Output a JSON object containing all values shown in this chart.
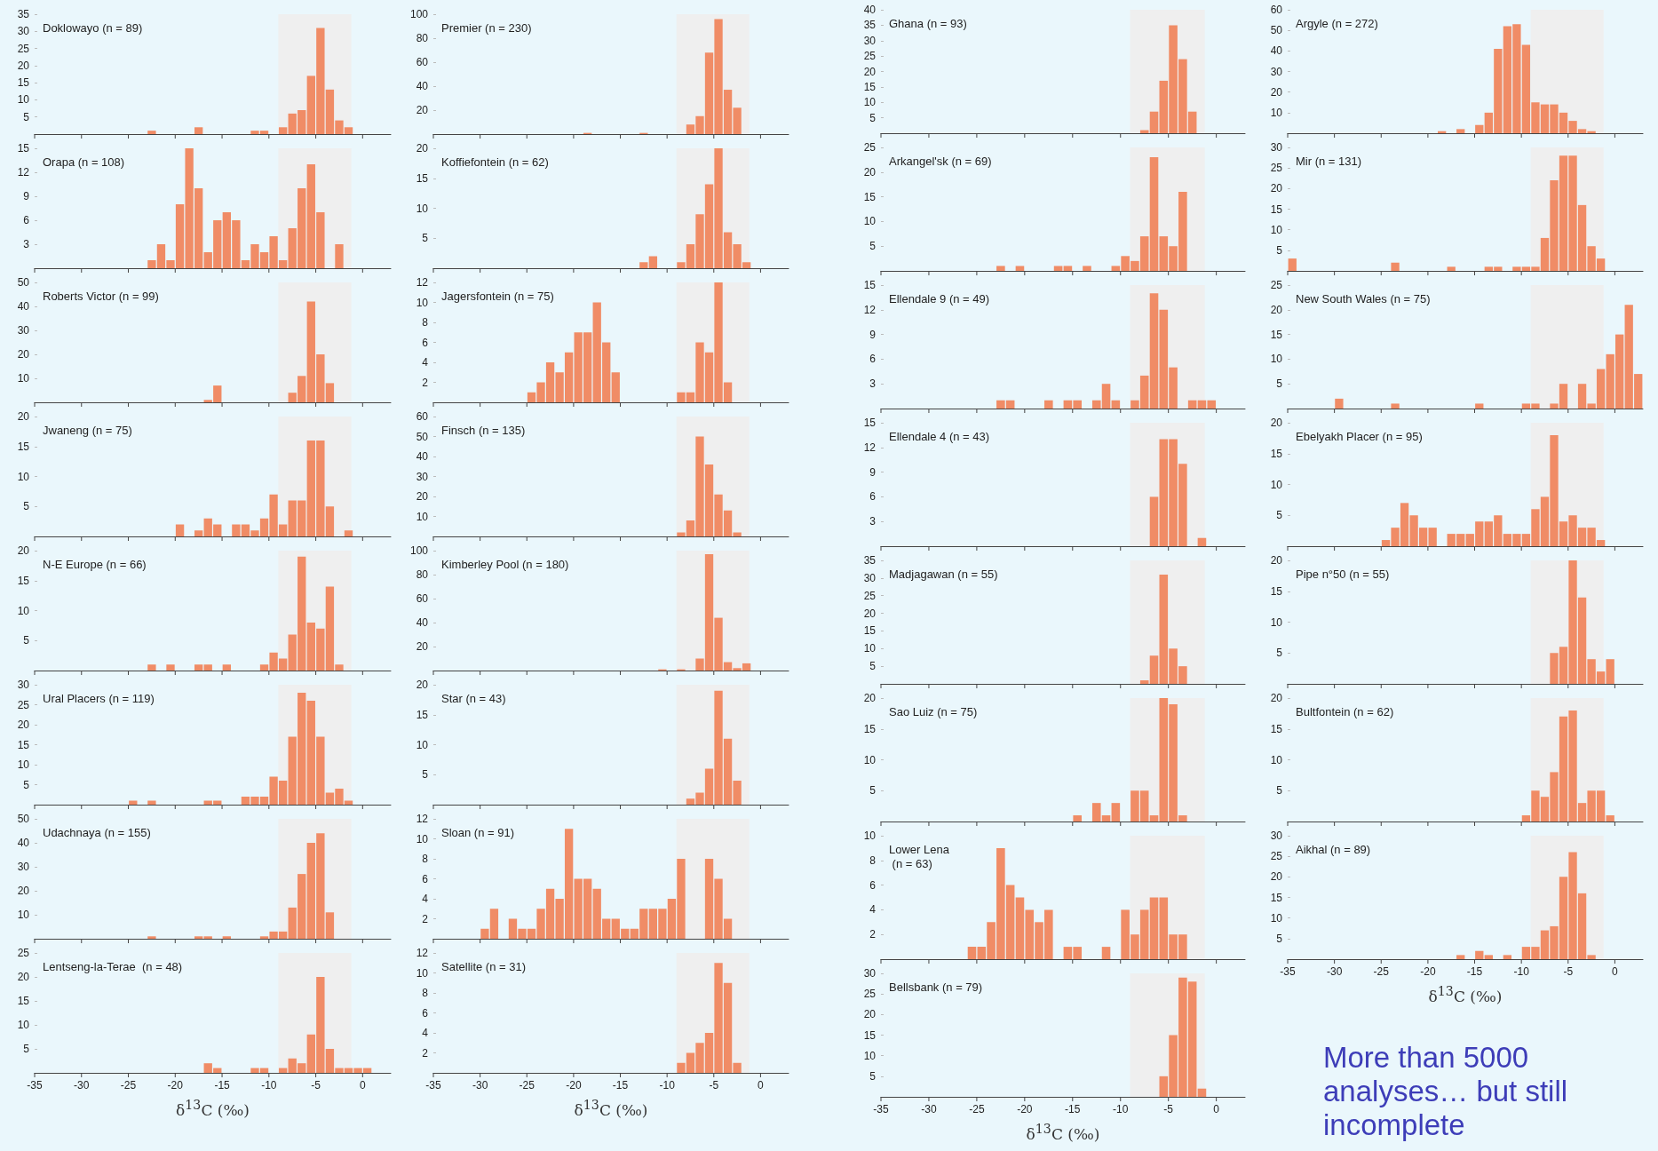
{
  "chart_data": [
    {
      "type": "histogram",
      "title": "Doklowayo (n = 89)",
      "bins": [
        -23,
        -22,
        -21,
        -20,
        -19,
        -18,
        -17,
        -16,
        -15,
        -14,
        -13,
        -12,
        -11,
        -10,
        -9,
        -8,
        -7,
        -6,
        -5,
        -4,
        -3,
        -2,
        -1
      ],
      "values": [
        1,
        0,
        0,
        0,
        0,
        2,
        0,
        0,
        0,
        0,
        0,
        1,
        1,
        0,
        2,
        6,
        7,
        17,
        31,
        13,
        4,
        2
      ],
      "color": "#f08c66",
      "xlim": [
        -35,
        3
      ],
      "xticks": [
        -35,
        -30,
        -25,
        -20,
        -15,
        -10,
        -5,
        0
      ],
      "ylim": [
        0,
        35
      ],
      "yticks": [
        5,
        10,
        15,
        20,
        25,
        30,
        35
      ],
      "bands": [
        {
          "axis": "x",
          "from": -9,
          "to": -1.2,
          "color": "#efefef"
        }
      ],
      "tick_labels": "y"
    },
    {
      "type": "histogram",
      "title": "Orapa (n = 108)",
      "bins": [
        -23,
        -22,
        -21,
        -20,
        -19,
        -18,
        -17,
        -16,
        -15,
        -14,
        -13,
        -12,
        -11,
        -10,
        -9,
        -8,
        -7,
        -6,
        -5,
        -4,
        -3,
        -2
      ],
      "values": [
        1,
        3,
        1,
        8,
        15,
        10,
        2,
        6,
        7,
        6,
        1,
        3,
        2,
        4,
        1,
        5,
        10,
        13,
        7,
        0,
        3
      ],
      "color": "#f08c66",
      "xlim": [
        -35,
        3
      ],
      "xticks": [
        -35,
        -30,
        -25,
        -20,
        -15,
        -10,
        -5,
        0
      ],
      "ylim": [
        0,
        15
      ],
      "yticks": [
        3,
        6,
        9,
        12,
        15
      ],
      "bands": [
        {
          "axis": "x",
          "from": -9,
          "to": -1.2,
          "color": "#efefef"
        }
      ],
      "tick_labels": "y"
    },
    {
      "type": "histogram",
      "title": "Roberts Victor (n = 99)",
      "bins": [
        -17,
        -16,
        -15,
        -14,
        -13,
        -12,
        -11,
        -10,
        -9,
        -8,
        -7,
        -6,
        -5,
        -4,
        -3
      ],
      "values": [
        1,
        7,
        0,
        0,
        0,
        0,
        0,
        0,
        0,
        4,
        11,
        42,
        20,
        8
      ],
      "color": "#f08c66",
      "xlim": [
        -35,
        3
      ],
      "xticks": [
        -35,
        -30,
        -25,
        -20,
        -15,
        -10,
        -5,
        0
      ],
      "ylim": [
        0,
        50
      ],
      "yticks": [
        10,
        20,
        30,
        40,
        50
      ],
      "bands": [
        {
          "axis": "x",
          "from": -9,
          "to": -1.2,
          "color": "#efefef"
        }
      ],
      "tick_labels": "y"
    },
    {
      "type": "histogram",
      "title": "Jwaneng (n = 75)",
      "bins": [
        -20,
        -19,
        -18,
        -17,
        -16,
        -15,
        -14,
        -13,
        -12,
        -11,
        -10,
        -9,
        -8,
        -7,
        -6,
        -5,
        -4,
        -3,
        -2,
        -1
      ],
      "values": [
        2,
        0,
        1,
        3,
        2,
        0,
        2,
        2,
        1,
        3,
        7,
        2,
        6,
        6,
        16,
        16,
        5,
        0,
        1
      ],
      "color": "#f08c66",
      "xlim": [
        -35,
        3
      ],
      "xticks": [
        -35,
        -30,
        -25,
        -20,
        -15,
        -10,
        -5,
        0
      ],
      "ylim": [
        0,
        20
      ],
      "yticks": [
        5,
        10,
        15,
        20
      ],
      "bands": [
        {
          "axis": "x",
          "from": -9,
          "to": -1.2,
          "color": "#efefef"
        }
      ],
      "tick_labels": "y"
    },
    {
      "type": "histogram",
      "title": "N-E Europe (n = 66)",
      "bins": [
        -23,
        -22,
        -21,
        -20,
        -19,
        -18,
        -17,
        -16,
        -15,
        -14,
        -13,
        -12,
        -11,
        -10,
        -9,
        -8,
        -7,
        -6,
        -5,
        -4,
        -3,
        -2
      ],
      "values": [
        1,
        0,
        1,
        0,
        0,
        1,
        1,
        0,
        1,
        0,
        0,
        0,
        1,
        3,
        2,
        6,
        19,
        8,
        7,
        14,
        1
      ],
      "color": "#f08c66",
      "xlim": [
        -35,
        3
      ],
      "xticks": [
        -35,
        -30,
        -25,
        -20,
        -15,
        -10,
        -5,
        0
      ],
      "ylim": [
        0,
        20
      ],
      "yticks": [
        5,
        10,
        15,
        20
      ],
      "bands": [
        {
          "axis": "x",
          "from": -9,
          "to": -1.2,
          "color": "#efefef"
        }
      ],
      "tick_labels": "y"
    },
    {
      "type": "histogram",
      "title": "Ural Placers (n = 119)",
      "bins": [
        -25,
        -24,
        -23,
        -22,
        -21,
        -20,
        -19,
        -18,
        -17,
        -16,
        -15,
        -14,
        -13,
        -12,
        -11,
        -10,
        -9,
        -8,
        -7,
        -6,
        -5,
        -4,
        -3,
        -2,
        -1
      ],
      "values": [
        1,
        0,
        1,
        0,
        0,
        0,
        0,
        0,
        1,
        1,
        0,
        0,
        2,
        2,
        2,
        7,
        6,
        17,
        28,
        26,
        17,
        3,
        4,
        1
      ],
      "color": "#f08c66",
      "xlim": [
        -35,
        3
      ],
      "xticks": [
        -35,
        -30,
        -25,
        -20,
        -15,
        -10,
        -5,
        0
      ],
      "ylim": [
        0,
        30
      ],
      "yticks": [
        5,
        10,
        15,
        20,
        25,
        30
      ],
      "bands": [
        {
          "axis": "x",
          "from": -9,
          "to": -1.2,
          "color": "#efefef"
        }
      ],
      "tick_labels": "y"
    },
    {
      "type": "histogram",
      "title": "Udachnaya (n = 155)",
      "bins": [
        -23,
        -22,
        -21,
        -20,
        -19,
        -18,
        -17,
        -16,
        -15,
        -14,
        -13,
        -12,
        -11,
        -10,
        -9,
        -8,
        -7,
        -6,
        -5,
        -4,
        -3
      ],
      "values": [
        1,
        0,
        0,
        0,
        0,
        1,
        1,
        0,
        1,
        0,
        0,
        0,
        1,
        3,
        3,
        13,
        27,
        40,
        44,
        11
      ],
      "color": "#f08c66",
      "xlim": [
        -35,
        3
      ],
      "xticks": [
        -35,
        -30,
        -25,
        -20,
        -15,
        -10,
        -5,
        0
      ],
      "ylim": [
        0,
        50
      ],
      "yticks": [
        10,
        20,
        30,
        40,
        50
      ],
      "bands": [
        {
          "axis": "x",
          "from": -9,
          "to": -1.2,
          "color": "#efefef"
        }
      ],
      "tick_labels": "y"
    },
    {
      "type": "histogram",
      "title": "Lentseng-la-Terae  (n = 48)",
      "xlabel": "δ$^{13}$C (‰)",
      "bins": [
        -17,
        -16,
        -15,
        -14,
        -13,
        -12,
        -11,
        -10,
        -9,
        -8,
        -7,
        -6,
        -5,
        -4,
        -3,
        -2,
        -1,
        0,
        1
      ],
      "values": [
        2,
        1,
        0,
        0,
        0,
        1,
        1,
        0,
        1,
        3,
        2,
        8,
        20,
        5,
        1,
        1,
        1,
        1
      ],
      "color": "#f08c66",
      "xlim": [
        -35,
        3
      ],
      "xticks": [
        -35,
        -30,
        -25,
        -20,
        -15,
        -10,
        -5,
        0
      ],
      "ylim": [
        0,
        25
      ],
      "yticks": [
        5,
        10,
        15,
        20,
        25
      ],
      "bands": [
        {
          "axis": "x",
          "from": -9,
          "to": -1.2,
          "color": "#efefef"
        }
      ]
    },
    {
      "type": "histogram",
      "title": "Premier (n = 230)",
      "bins": [
        -19,
        -18,
        -17,
        -16,
        -15,
        -14,
        -13,
        -12,
        -11,
        -10,
        -9,
        -8,
        -7,
        -6,
        -5,
        -4,
        -3,
        -2
      ],
      "values": [
        1,
        0,
        0,
        0,
        0,
        0,
        1,
        0,
        0,
        0,
        0,
        8,
        15,
        68,
        96,
        37,
        22
      ],
      "color": "#f08c66",
      "xlim": [
        -35,
        3
      ],
      "xticks": [
        -35,
        -30,
        -25,
        -20,
        -15,
        -10,
        -5,
        0
      ],
      "ylim": [
        0,
        100
      ],
      "yticks": [
        20,
        40,
        60,
        80,
        100
      ],
      "bands": [
        {
          "axis": "x",
          "from": -9,
          "to": -1.2,
          "color": "#efefef"
        }
      ],
      "tick_labels": "y"
    },
    {
      "type": "histogram",
      "title": "Koffiefontein (n = 62)",
      "bins": [
        -13,
        -12,
        -11,
        -10,
        -9,
        -8,
        -7,
        -6,
        -5,
        -4,
        -3,
        -2,
        -1
      ],
      "values": [
        1,
        2,
        0,
        0,
        1,
        4,
        9,
        14,
        20,
        6,
        4,
        1
      ],
      "color": "#f08c66",
      "xlim": [
        -35,
        3
      ],
      "xticks": [
        -35,
        -30,
        -25,
        -20,
        -15,
        -10,
        -5,
        0
      ],
      "ylim": [
        0,
        20
      ],
      "yticks": [
        5,
        10,
        15,
        20
      ],
      "bands": [
        {
          "axis": "x",
          "from": -9,
          "to": -1.2,
          "color": "#efefef"
        }
      ],
      "tick_labels": "y"
    },
    {
      "type": "histogram",
      "title": "Jagersfontein (n = 75)",
      "bins": [
        -25,
        -24,
        -23,
        -22,
        -21,
        -20,
        -19,
        -18,
        -17,
        -16,
        -15,
        -14,
        -13,
        -12,
        -11,
        -10,
        -9,
        -8,
        -7,
        -6,
        -5,
        -4,
        -3
      ],
      "values": [
        1,
        2,
        4,
        3,
        5,
        7,
        7,
        10,
        6,
        3,
        0,
        0,
        0,
        0,
        0,
        0,
        1,
        1,
        6,
        5,
        12,
        2
      ],
      "color": "#f08c66",
      "xlim": [
        -35,
        3
      ],
      "xticks": [
        -35,
        -30,
        -25,
        -20,
        -15,
        -10,
        -5,
        0
      ],
      "ylim": [
        0,
        12
      ],
      "yticks": [
        2,
        4,
        6,
        8,
        10,
        12
      ],
      "bands": [
        {
          "axis": "x",
          "from": -9,
          "to": -1.2,
          "color": "#efefef"
        }
      ],
      "tick_labels": "y"
    },
    {
      "type": "histogram",
      "title": "Finsch (n = 135)",
      "bins": [
        -9,
        -8,
        -7,
        -6,
        -5,
        -4,
        -3,
        -2
      ],
      "values": [
        2,
        8,
        50,
        36,
        21,
        13,
        2
      ],
      "color": "#f08c66",
      "xlim": [
        -35,
        3
      ],
      "xticks": [
        -35,
        -30,
        -25,
        -20,
        -15,
        -10,
        -5,
        0
      ],
      "ylim": [
        0,
        60
      ],
      "yticks": [
        10,
        20,
        30,
        40,
        50,
        60
      ],
      "bands": [
        {
          "axis": "x",
          "from": -9,
          "to": -1.2,
          "color": "#efefef"
        }
      ],
      "tick_labels": "y"
    },
    {
      "type": "histogram",
      "title": "Kimberley Pool (n = 180)",
      "bins": [
        -11,
        -10,
        -9,
        -8,
        -7,
        -6,
        -5,
        -4,
        -3,
        -2,
        -1
      ],
      "values": [
        1,
        0,
        1,
        0,
        10,
        97,
        44,
        7,
        2,
        6
      ],
      "color": "#f08c66",
      "xlim": [
        -35,
        3
      ],
      "xticks": [
        -35,
        -30,
        -25,
        -20,
        -15,
        -10,
        -5,
        0
      ],
      "ylim": [
        0,
        100
      ],
      "yticks": [
        20,
        40,
        60,
        80,
        100
      ],
      "bands": [
        {
          "axis": "x",
          "from": -9,
          "to": -1.2,
          "color": "#efefef"
        }
      ],
      "tick_labels": "y"
    },
    {
      "type": "histogram",
      "title": "Star (n = 43)",
      "bins": [
        -8,
        -7,
        -6,
        -5,
        -4,
        -3,
        -2
      ],
      "values": [
        1,
        2,
        6,
        19,
        11,
        4
      ],
      "color": "#f08c66",
      "xlim": [
        -35,
        3
      ],
      "xticks": [
        -35,
        -30,
        -25,
        -20,
        -15,
        -10,
        -5,
        0
      ],
      "ylim": [
        0,
        20
      ],
      "yticks": [
        5,
        10,
        15,
        20
      ],
      "bands": [
        {
          "axis": "x",
          "from": -9,
          "to": -1.2,
          "color": "#efefef"
        }
      ],
      "tick_labels": "y"
    },
    {
      "type": "histogram",
      "title": "Sloan (n = 91)",
      "bins": [
        -30,
        -29,
        -28,
        -27,
        -26,
        -25,
        -24,
        -23,
        -22,
        -21,
        -20,
        -19,
        -18,
        -17,
        -16,
        -15,
        -14,
        -13,
        -12,
        -11,
        -10,
        -9,
        -8,
        -7,
        -6,
        -5,
        -4,
        -3
      ],
      "values": [
        1,
        3,
        0,
        2,
        1,
        1,
        3,
        5,
        4,
        11,
        6,
        6,
        5,
        2,
        2,
        1,
        1,
        3,
        3,
        3,
        4,
        8,
        0,
        0,
        8,
        6,
        2
      ],
      "color": "#f08c66",
      "xlim": [
        -35,
        3
      ],
      "xticks": [
        -35,
        -30,
        -25,
        -20,
        -15,
        -10,
        -5,
        0
      ],
      "ylim": [
        0,
        12
      ],
      "yticks": [
        2,
        4,
        6,
        8,
        10,
        12
      ],
      "bands": [
        {
          "axis": "x",
          "from": -9,
          "to": -1.2,
          "color": "#efefef"
        }
      ],
      "tick_labels": "y"
    },
    {
      "type": "histogram",
      "title": "Satellite (n = 31)",
      "xlabel": "δ$^{13}$C (‰)",
      "bins": [
        -9,
        -8,
        -7,
        -6,
        -5,
        -4,
        -3,
        -2
      ],
      "values": [
        1,
        2,
        3,
        4,
        11,
        9,
        1
      ],
      "color": "#f08c66",
      "xlim": [
        -35,
        3
      ],
      "xticks": [
        -35,
        -30,
        -25,
        -20,
        -15,
        -10,
        -5,
        0
      ],
      "ylim": [
        0,
        12
      ],
      "yticks": [
        2,
        4,
        6,
        8,
        10,
        12
      ],
      "bands": [
        {
          "axis": "x",
          "from": -9,
          "to": -1.2,
          "color": "#efefef"
        }
      ]
    },
    {
      "type": "histogram",
      "title": "Ghana (n = 93)",
      "bins": [
        -8,
        -7,
        -6,
        -5,
        -4,
        -3,
        -2
      ],
      "values": [
        1,
        7,
        17,
        35,
        24,
        7
      ],
      "color": "#f08c66",
      "xlim": [
        -35,
        3
      ],
      "xticks": [
        -35,
        -30,
        -25,
        -20,
        -15,
        -10,
        -5,
        0
      ],
      "ylim": [
        0,
        40
      ],
      "yticks": [
        5,
        10,
        15,
        20,
        25,
        30,
        35,
        40
      ],
      "bands": [
        {
          "axis": "x",
          "from": -9,
          "to": -1.2,
          "color": "#efefef"
        }
      ],
      "tick_labels": "y"
    },
    {
      "type": "histogram",
      "title": "Arkangel'sk (n = 69)",
      "bins": [
        -23,
        -22,
        -21,
        -20,
        -19,
        -18,
        -17,
        -16,
        -15,
        -14,
        -13,
        -12,
        -11,
        -10,
        -9,
        -8,
        -7,
        -6,
        -5,
        -4,
        -3
      ],
      "values": [
        1,
        0,
        1,
        0,
        0,
        0,
        1,
        1,
        0,
        1,
        0,
        0,
        1,
        3,
        2,
        7,
        23,
        7,
        5,
        16
      ],
      "color": "#f08c66",
      "xlim": [
        -35,
        3
      ],
      "xticks": [
        -35,
        -30,
        -25,
        -20,
        -15,
        -10,
        -5,
        0
      ],
      "ylim": [
        0,
        25
      ],
      "yticks": [
        5,
        10,
        15,
        20,
        25
      ],
      "bands": [
        {
          "axis": "x",
          "from": -9,
          "to": -1.2,
          "color": "#efefef"
        }
      ],
      "tick_labels": "y"
    },
    {
      "type": "histogram",
      "title": "Ellendale 9 (n = 49)",
      "bins": [
        -23,
        -22,
        -21,
        -20,
        -19,
        -18,
        -17,
        -16,
        -15,
        -14,
        -13,
        -12,
        -11,
        -10,
        -9,
        -8,
        -7,
        -6,
        -5,
        -4,
        -3,
        -2,
        -1,
        0
      ],
      "values": [
        1,
        1,
        0,
        0,
        0,
        1,
        0,
        1,
        1,
        0,
        1,
        3,
        1,
        0,
        1,
        4,
        14,
        12,
        5,
        0,
        1,
        1,
        1
      ],
      "color": "#f08c66",
      "xlim": [
        -35,
        3
      ],
      "xticks": [
        -35,
        -30,
        -25,
        -20,
        -15,
        -10,
        -5,
        0
      ],
      "ylim": [
        0,
        15
      ],
      "yticks": [
        3,
        6,
        9,
        12,
        15
      ],
      "bands": [
        {
          "axis": "x",
          "from": -9,
          "to": -1.2,
          "color": "#efefef"
        }
      ],
      "tick_labels": "y"
    },
    {
      "type": "histogram",
      "title": "Ellendale 4 (n = 43)",
      "bins": [
        -7,
        -6,
        -5,
        -4,
        -3,
        -2,
        -1
      ],
      "values": [
        6,
        13,
        13,
        10,
        0,
        1
      ],
      "color": "#f08c66",
      "xlim": [
        -35,
        3
      ],
      "xticks": [
        -35,
        -30,
        -25,
        -20,
        -15,
        -10,
        -5,
        0
      ],
      "ylim": [
        0,
        15
      ],
      "yticks": [
        3,
        6,
        9,
        12,
        15
      ],
      "bands": [
        {
          "axis": "x",
          "from": -9,
          "to": -1.2,
          "color": "#efefef"
        }
      ],
      "tick_labels": "y"
    },
    {
      "type": "histogram",
      "title": "Madjagawan (n = 55)",
      "bins": [
        -8,
        -7,
        -6,
        -5,
        -4,
        -3
      ],
      "values": [
        1,
        8,
        31,
        10,
        5
      ],
      "color": "#f08c66",
      "xlim": [
        -35,
        3
      ],
      "xticks": [
        -35,
        -30,
        -25,
        -20,
        -15,
        -10,
        -5,
        0
      ],
      "ylim": [
        0,
        35
      ],
      "yticks": [
        5,
        10,
        15,
        20,
        25,
        30,
        35
      ],
      "bands": [
        {
          "axis": "x",
          "from": -9,
          "to": -1.2,
          "color": "#efefef"
        }
      ],
      "tick_labels": "y"
    },
    {
      "type": "histogram",
      "title": "Sao Luiz (n = 75)",
      "bins": [
        -15,
        -14,
        -13,
        -12,
        -11,
        -10,
        -9,
        -8,
        -7,
        -6,
        -5,
        -4,
        -3
      ],
      "values": [
        1,
        0,
        3,
        1,
        3,
        0,
        5,
        5,
        1,
        20,
        19,
        1
      ],
      "color": "#f08c66",
      "xlim": [
        -35,
        3
      ],
      "xticks": [
        -35,
        -30,
        -25,
        -20,
        -15,
        -10,
        -5,
        0
      ],
      "ylim": [
        0,
        20
      ],
      "yticks": [
        5,
        10,
        15,
        20
      ],
      "bands": [
        {
          "axis": "x",
          "from": -9,
          "to": -1.2,
          "color": "#efefef"
        }
      ],
      "tick_labels": "y"
    },
    {
      "type": "histogram",
      "title": "Lower Lena\n (n = 63)",
      "bins": [
        -26,
        -25,
        -24,
        -23,
        -22,
        -21,
        -20,
        -19,
        -18,
        -17,
        -16,
        -15,
        -14,
        -13,
        -12,
        -11,
        -10,
        -9,
        -8,
        -7,
        -6,
        -5,
        -4,
        -3
      ],
      "values": [
        1,
        1,
        3,
        9,
        6,
        5,
        4,
        3,
        4,
        0,
        1,
        1,
        0,
        0,
        1,
        0,
        4,
        2,
        4,
        5,
        5,
        2,
        2
      ],
      "color": "#f08c66",
      "xlim": [
        -35,
        3
      ],
      "xticks": [
        -35,
        -30,
        -25,
        -20,
        -15,
        -10,
        -5,
        0
      ],
      "ylim": [
        0,
        10
      ],
      "yticks": [
        2,
        4,
        6,
        8,
        10
      ],
      "bands": [
        {
          "axis": "x",
          "from": -9,
          "to": -1.2,
          "color": "#efefef"
        }
      ],
      "tick_labels": "y"
    },
    {
      "type": "histogram",
      "title": "Bellsbank (n = 79)",
      "xlabel": "δ$^{13}$C (‰)",
      "bins": [
        -6,
        -5,
        -4,
        -3,
        -2,
        -1
      ],
      "values": [
        5,
        15,
        29,
        28,
        2
      ],
      "color": "#f08c66",
      "xlim": [
        -35,
        3
      ],
      "xticks": [
        -35,
        -30,
        -25,
        -20,
        -15,
        -10,
        -5,
        0
      ],
      "ylim": [
        0,
        30
      ],
      "yticks": [
        5,
        10,
        15,
        20,
        25,
        30
      ],
      "bands": [
        {
          "axis": "x",
          "from": -9,
          "to": -1.2,
          "color": "#efefef"
        }
      ]
    },
    {
      "type": "histogram",
      "title": "Argyle (n = 272)",
      "bins": [
        -19,
        -18,
        -17,
        -16,
        -15,
        -14,
        -13,
        -12,
        -11,
        -10,
        -9,
        -8,
        -7,
        -6,
        -5,
        -4,
        -3,
        -2
      ],
      "values": [
        1,
        0,
        2,
        0,
        4,
        10,
        41,
        52,
        53,
        43,
        15,
        14,
        14,
        10,
        6,
        2,
        1
      ],
      "color": "#f08c66",
      "xlim": [
        -35,
        3
      ],
      "xticks": [
        -35,
        -30,
        -25,
        -20,
        -15,
        -10,
        -5,
        0
      ],
      "ylim": [
        0,
        60
      ],
      "yticks": [
        10,
        20,
        30,
        40,
        50,
        60
      ],
      "bands": [
        {
          "axis": "x",
          "from": -9,
          "to": -1.2,
          "color": "#efefef"
        }
      ],
      "tick_labels": "y"
    },
    {
      "type": "histogram",
      "title": "Mir (n = 131)",
      "bins": [
        -35,
        -34,
        -33,
        -32,
        -31,
        -30,
        -29,
        -28,
        -27,
        -26,
        -25,
        -24,
        -23,
        -22,
        -21,
        -20,
        -19,
        -18,
        -17,
        -16,
        -15,
        -14,
        -13,
        -12,
        -11,
        -10,
        -9,
        -8,
        -7,
        -6,
        -5,
        -4,
        -3,
        -2,
        -1
      ],
      "values": [
        3,
        0,
        0,
        0,
        0,
        0,
        0,
        0,
        0,
        0,
        0,
        2,
        0,
        0,
        0,
        0,
        0,
        1,
        0,
        0,
        0,
        1,
        1,
        0,
        1,
        1,
        1,
        8,
        22,
        28,
        28,
        16,
        6,
        3
      ],
      "color": "#f08c66",
      "xlim": [
        -35,
        3
      ],
      "xticks": [
        -35,
        -30,
        -25,
        -20,
        -15,
        -10,
        -5,
        0
      ],
      "ylim": [
        0,
        30
      ],
      "yticks": [
        5,
        10,
        15,
        20,
        25,
        30
      ],
      "bands": [
        {
          "axis": "x",
          "from": -9,
          "to": -1.2,
          "color": "#efefef"
        }
      ],
      "tick_labels": "y"
    },
    {
      "type": "histogram",
      "title": "New South Wales (n = 75)",
      "bins": [
        -30,
        -29,
        -28,
        -27,
        -26,
        -25,
        -24,
        -23,
        -22,
        -21,
        -20,
        -19,
        -18,
        -17,
        -16,
        -15,
        -14,
        -13,
        -12,
        -11,
        -10,
        -9,
        -8,
        -7,
        -6,
        -5,
        -4,
        -3,
        -2,
        -1,
        0,
        1,
        2,
        3
      ],
      "values": [
        2,
        0,
        0,
        0,
        0,
        0,
        1,
        0,
        0,
        0,
        0,
        0,
        0,
        0,
        0,
        1,
        0,
        0,
        0,
        0,
        1,
        1,
        0,
        1,
        5,
        0,
        5,
        1,
        8,
        11,
        15,
        21,
        7
      ],
      "color": "#f08c66",
      "xlim": [
        -35,
        3
      ],
      "xticks": [
        -35,
        -30,
        -25,
        -20,
        -15,
        -10,
        -5,
        0
      ],
      "ylim": [
        0,
        25
      ],
      "yticks": [
        5,
        10,
        15,
        20,
        25
      ],
      "bands": [
        {
          "axis": "x",
          "from": -9,
          "to": -1.2,
          "color": "#efefef"
        }
      ],
      "tick_labels": "y"
    },
    {
      "type": "histogram",
      "title": "Ebelyakh Placer (n = 95)",
      "bins": [
        -25,
        -24,
        -23,
        -22,
        -21,
        -20,
        -19,
        -18,
        -17,
        -16,
        -15,
        -14,
        -13,
        -12,
        -11,
        -10,
        -9,
        -8,
        -7,
        -6,
        -5,
        -4,
        -3,
        -2,
        -1
      ],
      "values": [
        1,
        3,
        7,
        5,
        3,
        3,
        0,
        2,
        2,
        2,
        4,
        4,
        5,
        2,
        2,
        2,
        6,
        8,
        18,
        4,
        5,
        3,
        3,
        1
      ],
      "color": "#f08c66",
      "xlim": [
        -35,
        3
      ],
      "xticks": [
        -35,
        -30,
        -25,
        -20,
        -15,
        -10,
        -5,
        0
      ],
      "ylim": [
        0,
        20
      ],
      "yticks": [
        5,
        10,
        15,
        20
      ],
      "bands": [
        {
          "axis": "x",
          "from": -9,
          "to": -1.2,
          "color": "#efefef"
        }
      ],
      "tick_labels": "y"
    },
    {
      "type": "histogram",
      "title": "Pipe n°50 (n = 55)",
      "bins": [
        -7,
        -6,
        -5,
        -4,
        -3,
        -2,
        -1,
        0
      ],
      "values": [
        5,
        6,
        20,
        14,
        4,
        2,
        4
      ],
      "color": "#f08c66",
      "xlim": [
        -35,
        3
      ],
      "xticks": [
        -35,
        -30,
        -25,
        -20,
        -15,
        -10,
        -5,
        0
      ],
      "ylim": [
        0,
        20
      ],
      "yticks": [
        5,
        10,
        15,
        20
      ],
      "bands": [
        {
          "axis": "x",
          "from": -9,
          "to": -1.2,
          "color": "#efefef"
        }
      ],
      "tick_labels": "y"
    },
    {
      "type": "histogram",
      "title": "Bultfontein (n = 62)",
      "bins": [
        -10,
        -9,
        -8,
        -7,
        -6,
        -5,
        -4,
        -3,
        -2,
        -1,
        0
      ],
      "values": [
        1,
        5,
        4,
        8,
        17,
        18,
        3,
        5,
        5,
        1
      ],
      "color": "#f08c66",
      "xlim": [
        -35,
        3
      ],
      "xticks": [
        -35,
        -30,
        -25,
        -20,
        -15,
        -10,
        -5,
        0
      ],
      "ylim": [
        0,
        20
      ],
      "yticks": [
        5,
        10,
        15,
        20
      ],
      "bands": [
        {
          "axis": "x",
          "from": -9,
          "to": -1.2,
          "color": "#efefef"
        }
      ],
      "tick_labels": "y"
    },
    {
      "type": "histogram",
      "title": "Aikhal (n = 89)",
      "xlabel": "δ$^{13}$C (‰)",
      "annotations": [
        "More than 5000 analyses… but still incomplete"
      ],
      "bins": [
        -17,
        -16,
        -15,
        -14,
        -13,
        -12,
        -11,
        -10,
        -9,
        -8,
        -7,
        -6,
        -5,
        -4,
        -3,
        -2
      ],
      "values": [
        1,
        0,
        2,
        1,
        0,
        1,
        0,
        3,
        3,
        7,
        8,
        20,
        26,
        16,
        1
      ],
      "color": "#f08c66",
      "xlim": [
        -35,
        3
      ],
      "xticks": [
        -35,
        -30,
        -25,
        -20,
        -15,
        -10,
        -5,
        0
      ],
      "ylim": [
        0,
        30
      ],
      "yticks": [
        5,
        10,
        15,
        20,
        25,
        30
      ],
      "bands": [
        {
          "axis": "x",
          "from": -9,
          "to": -1.2,
          "color": "#efefef"
        }
      ]
    }
  ]
}
